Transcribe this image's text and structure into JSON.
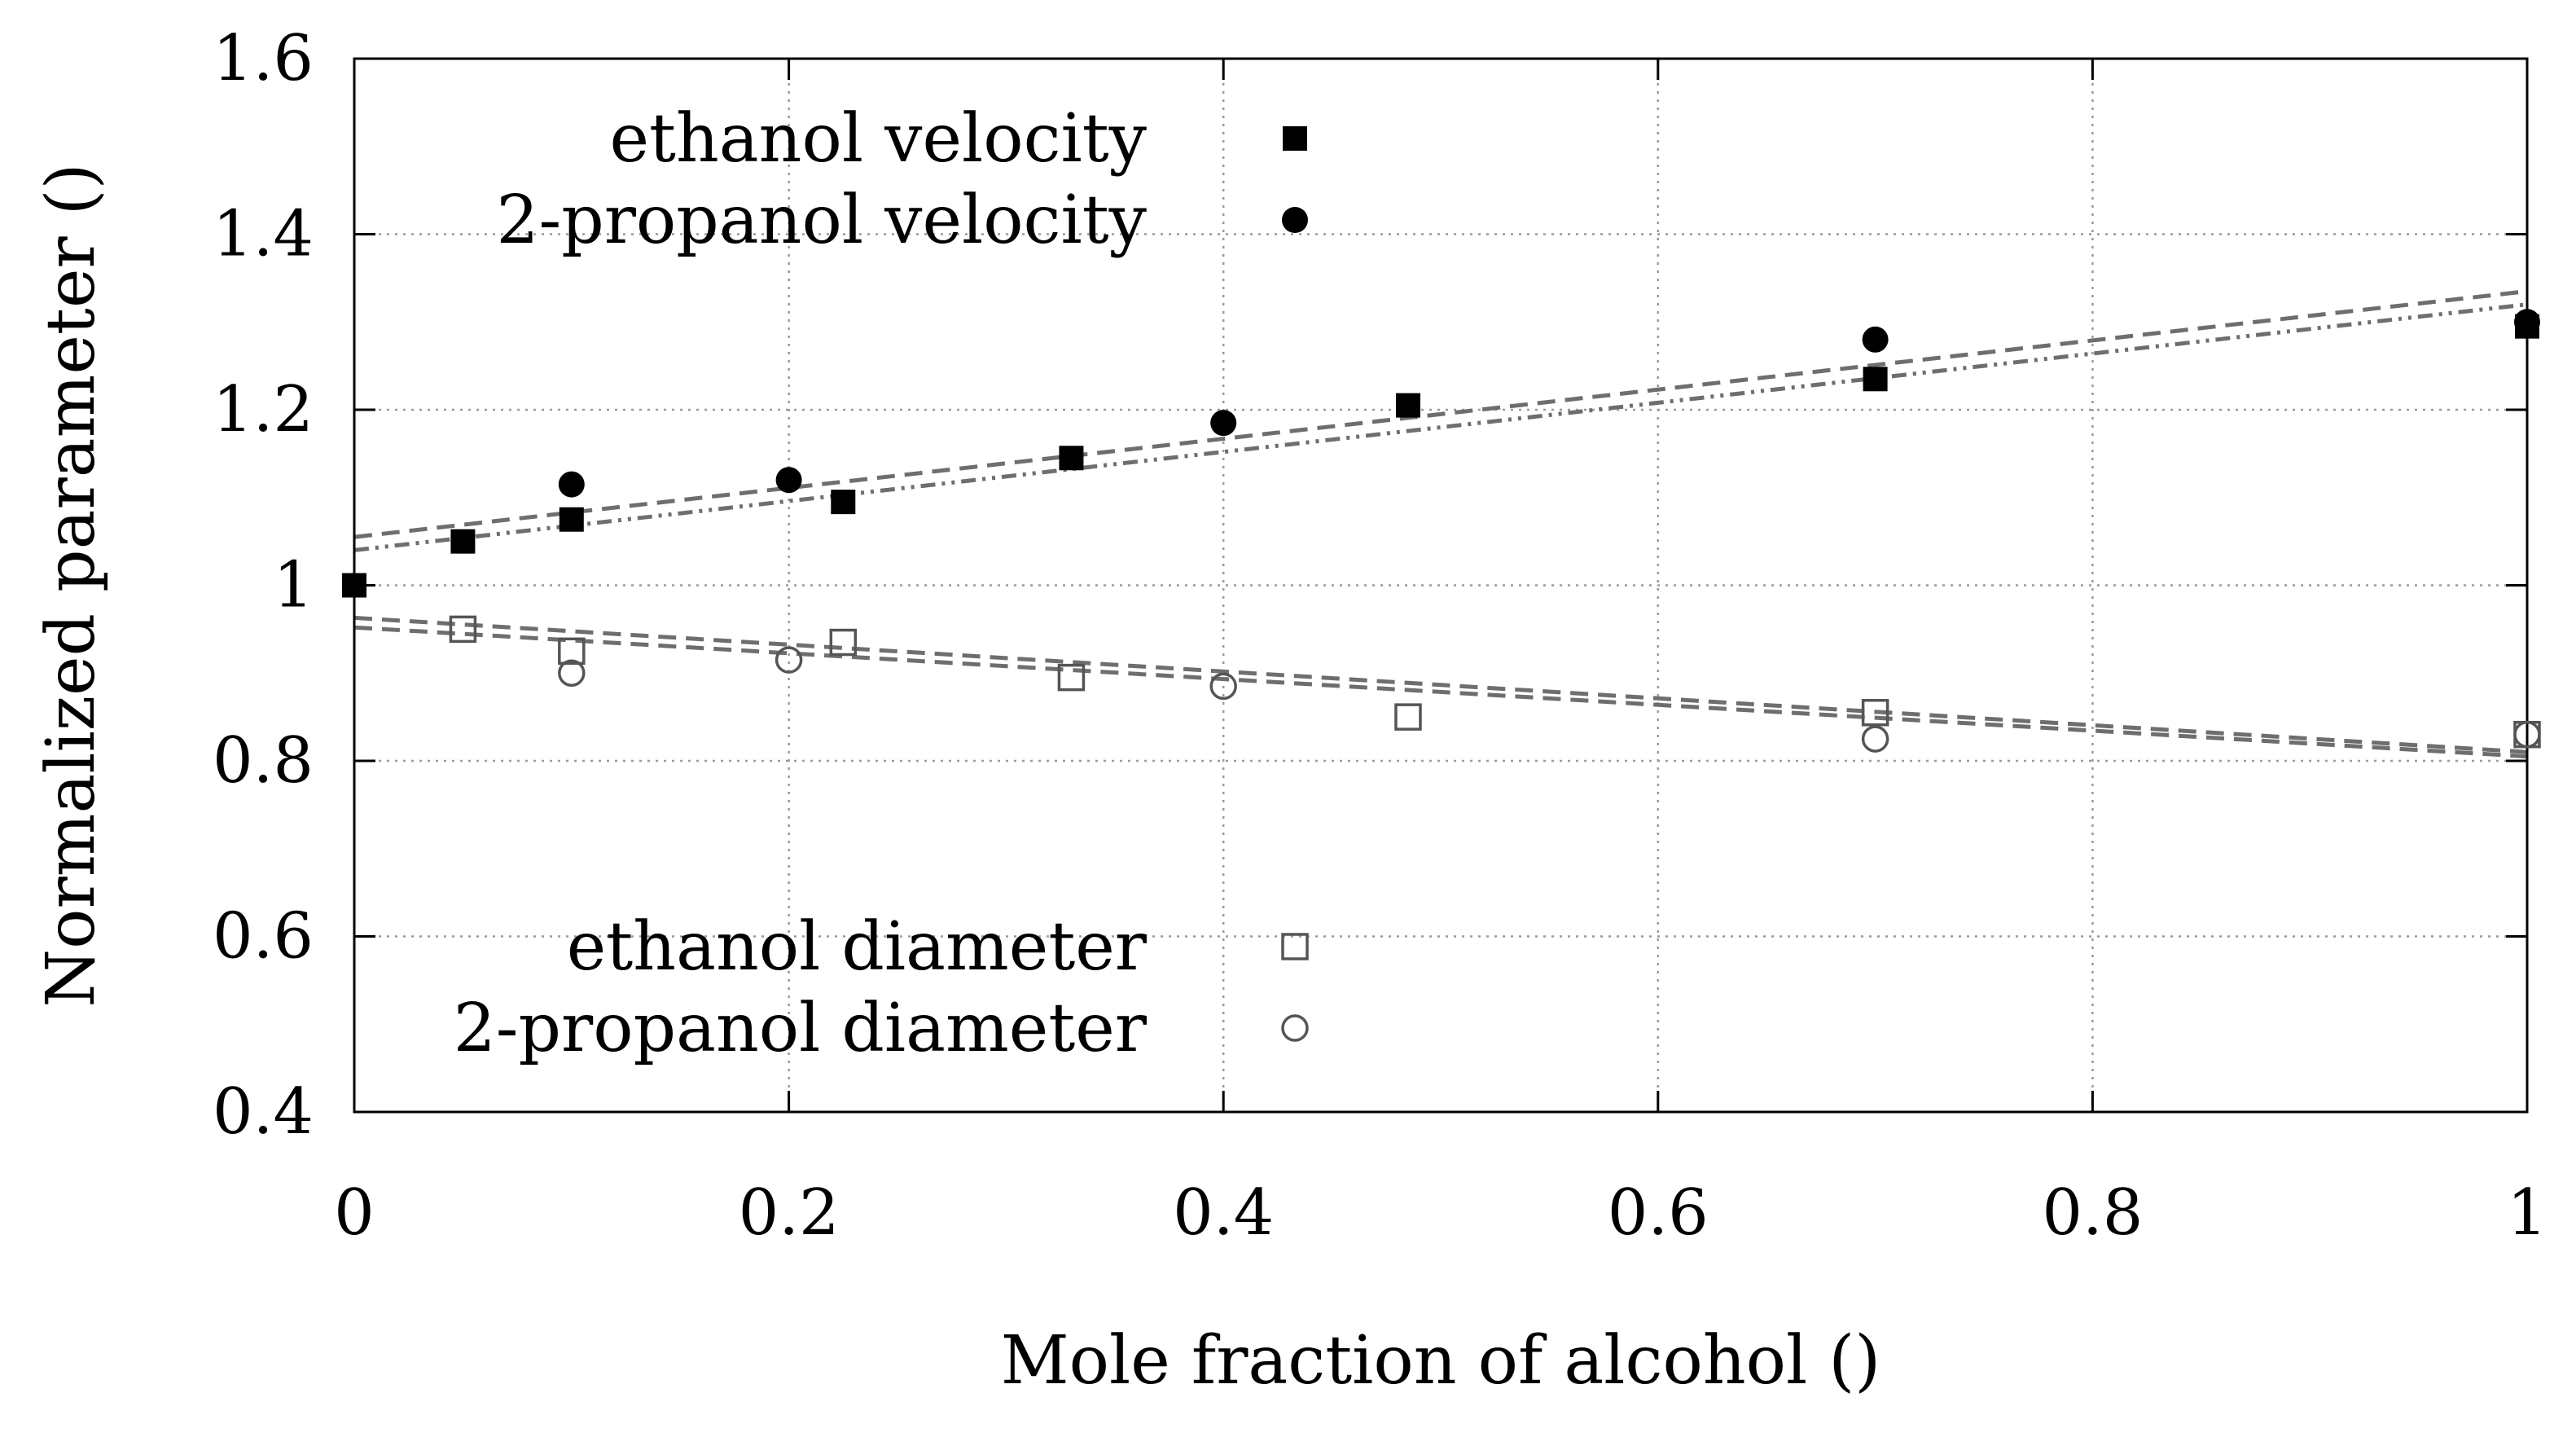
{
  "chart_data": {
    "type": "scatter",
    "title": "",
    "xlabel": "Mole fraction of alcohol ()",
    "ylabel": "Normalized parameter ()",
    "xlim": [
      0,
      1
    ],
    "ylim": [
      0.4,
      1.6
    ],
    "xticks": [
      0,
      0.2,
      0.4,
      0.6,
      0.8,
      1
    ],
    "xtick_labels": [
      "0",
      "0.2",
      "0.4",
      "0.6",
      "0.8",
      "1"
    ],
    "yticks": [
      0.4,
      0.6,
      0.8,
      1.0,
      1.2,
      1.4,
      1.6
    ],
    "ytick_labels": [
      "0.4",
      "0.6",
      "0.8",
      "1",
      "1.2",
      "1.4",
      "1.6"
    ],
    "grid": true,
    "legend": [
      {
        "label": "ethanol velocity",
        "series": "ethanol-velocity",
        "placement": "top-left"
      },
      {
        "label": "2-propanol velocity",
        "series": "2-propanol-velocity",
        "placement": "top-left"
      },
      {
        "label": "ethanol diameter",
        "series": "ethanol-diameter",
        "placement": "bottom-left"
      },
      {
        "label": "2-propanol diameter",
        "series": "2-propanol-diameter",
        "placement": "bottom-left"
      }
    ],
    "series": [
      {
        "id": "ethanol-velocity",
        "name": "ethanol velocity",
        "marker": "filled-square",
        "x": [
          0,
          0.05,
          0.1,
          0.225,
          0.33,
          0.485,
          0.7,
          1.0
        ],
        "y": [
          1.0,
          1.05,
          1.075,
          1.095,
          1.145,
          1.205,
          1.235,
          1.295
        ]
      },
      {
        "id": "2-propanol-velocity",
        "name": "2-propanol velocity",
        "marker": "filled-circle",
        "x": [
          0.1,
          0.2,
          0.4,
          0.7,
          1.0
        ],
        "y": [
          1.115,
          1.12,
          1.185,
          1.28,
          1.3
        ]
      },
      {
        "id": "ethanol-diameter",
        "name": "ethanol diameter",
        "marker": "open-square",
        "x": [
          0.05,
          0.1,
          0.225,
          0.33,
          0.485,
          0.7,
          1.0
        ],
        "y": [
          0.95,
          0.925,
          0.935,
          0.895,
          0.85,
          0.855,
          0.83
        ]
      },
      {
        "id": "2-propanol-diameter",
        "name": "2-propanol diameter",
        "marker": "open-circle",
        "x": [
          0.1,
          0.2,
          0.4,
          0.7,
          1.0
        ],
        "y": [
          0.9,
          0.915,
          0.885,
          0.825,
          0.83
        ]
      }
    ],
    "fit_lines": [
      {
        "id": "fit-ethanol-velocity",
        "style": "dash-dot-dot",
        "x": [
          0,
          1
        ],
        "y": [
          1.04,
          1.32
        ]
      },
      {
        "id": "fit-2-propanol-velocity",
        "style": "dashed",
        "x": [
          0,
          1
        ],
        "y": [
          1.055,
          1.335
        ]
      },
      {
        "id": "fit-ethanol-diameter",
        "style": "dashed",
        "x": [
          0,
          1
        ],
        "y": [
          0.963,
          0.81
        ]
      },
      {
        "id": "fit-2-propanol-diameter",
        "style": "dashed",
        "x": [
          0,
          1
        ],
        "y": [
          0.952,
          0.805
        ]
      }
    ],
    "colors": {
      "marker": "#000000",
      "fit_line": "#6e6e6e",
      "grid": "#9a9a9a",
      "open_marker_stroke": "#555555"
    }
  }
}
